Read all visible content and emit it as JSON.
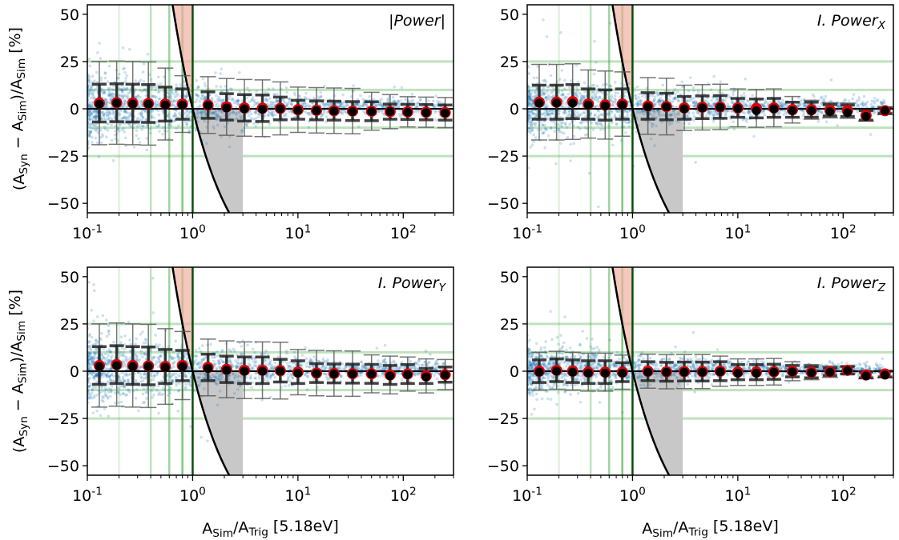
{
  "figure": {
    "xlabel": "A_Sim/A_Trig [5.18eV]",
    "ylabel": "(A_Syn − A_Sim)/A_Sim [%]"
  },
  "chart_data": [
    {
      "type": "scatter",
      "panel_label": "|Power|",
      "xscale": "log",
      "xlim": [
        0.1,
        300
      ],
      "ylim": [
        -55,
        55
      ],
      "yticks": [
        -50,
        -25,
        0,
        25,
        50
      ],
      "xticks": [
        0.1,
        1,
        10,
        100
      ],
      "xtick_labels": [
        "10^-1",
        "10^0",
        "10^1",
        "10^2"
      ],
      "hlines_green": [
        25,
        10,
        -10,
        -25
      ],
      "vlines_green": [
        0.2,
        0.4,
        0.6,
        0.8
      ],
      "vline_dark": 1,
      "scatter_spread": 9,
      "x": [
        0.13,
        0.19,
        0.27,
        0.38,
        0.55,
        0.8,
        1.4,
        2.1,
        3.1,
        4.6,
        6.8,
        10,
        15,
        22,
        33,
        50,
        75,
        110,
        165,
        250
      ],
      "mean": [
        3,
        3.2,
        3,
        2.8,
        2.5,
        2.5,
        2,
        1,
        0.5,
        0.3,
        0.2,
        -0.5,
        -0.8,
        -1,
        -1.2,
        -1.3,
        -1.5,
        -1.6,
        -1.8,
        -2
      ],
      "median": [
        2.5,
        3,
        2.5,
        2.5,
        2,
        2,
        1.8,
        0.5,
        0,
        -0.2,
        0,
        -0.8,
        -1,
        -1.2,
        -1.5,
        -1.5,
        -1.5,
        -1.8,
        -2,
        -2.2
      ],
      "std": [
        10,
        10,
        10,
        10,
        9,
        8,
        7,
        7,
        7,
        7,
        6,
        5,
        5,
        5,
        5,
        5,
        4,
        4,
        4,
        4
      ],
      "p95": [
        22,
        22,
        22,
        22,
        19,
        15,
        15,
        15,
        15,
        15,
        14,
        12,
        12,
        12,
        12,
        10,
        9,
        8,
        8,
        8
      ]
    },
    {
      "type": "scatter",
      "panel_label": "I. Power_X",
      "xscale": "log",
      "xlim": [
        0.1,
        300
      ],
      "ylim": [
        -55,
        55
      ],
      "yticks": [
        -50,
        -25,
        0,
        25,
        50
      ],
      "xticks": [
        0.1,
        1,
        10,
        100
      ],
      "xtick_labels": [
        "10^-1",
        "10^0",
        "10^1",
        "10^2"
      ],
      "hlines_green": [
        25,
        10,
        -10,
        -25
      ],
      "vlines_green": [
        0.2,
        0.4,
        0.6,
        0.8
      ],
      "vline_dark": 1,
      "scatter_spread": 8,
      "x": [
        0.13,
        0.19,
        0.27,
        0.38,
        0.55,
        0.8,
        1.4,
        2.1,
        3.1,
        4.6,
        6.8,
        10,
        15,
        22,
        33,
        50,
        75,
        110,
        165,
        250
      ],
      "mean": [
        3.5,
        3.5,
        3.8,
        2.5,
        2,
        2.5,
        1.5,
        1.2,
        0.5,
        0.8,
        1,
        0.5,
        0.2,
        0.5,
        -0.5,
        -0.5,
        -0.8,
        -1,
        -3.5,
        -1
      ],
      "median": [
        3,
        3,
        3,
        2,
        1.5,
        2,
        1,
        1,
        0,
        0.5,
        0.8,
        0.2,
        -1,
        0,
        -1,
        -1,
        -1.5,
        -2,
        -4,
        -1
      ],
      "std": [
        9,
        9,
        9,
        8,
        8,
        8,
        7,
        7,
        6,
        6,
        6,
        5,
        5,
        5,
        4,
        4,
        3,
        3,
        2.5,
        1.5
      ],
      "p95": [
        20,
        20,
        20,
        18,
        18,
        17,
        15,
        15,
        12,
        12,
        12,
        10,
        10,
        10,
        7,
        5,
        4,
        4,
        3,
        2
      ]
    },
    {
      "type": "scatter",
      "panel_label": "I. Power_Y",
      "xscale": "log",
      "xlim": [
        0.1,
        300
      ],
      "ylim": [
        -55,
        55
      ],
      "yticks": [
        -50,
        -25,
        0,
        25,
        50
      ],
      "xticks": [
        0.1,
        1,
        10,
        100
      ],
      "xtick_labels": [
        "10^-1",
        "10^0",
        "10^1",
        "10^2"
      ],
      "hlines_green": [
        25,
        10,
        -10,
        -25
      ],
      "vlines_green": [
        0.2,
        0.4,
        0.6,
        0.8
      ],
      "vline_dark": 1,
      "scatter_spread": 9,
      "x": [
        0.13,
        0.19,
        0.27,
        0.38,
        0.55,
        0.8,
        1.4,
        2.1,
        3.1,
        4.6,
        6.8,
        10,
        15,
        22,
        33,
        50,
        75,
        110,
        165,
        250
      ],
      "mean": [
        3,
        3.5,
        3,
        2.8,
        2.5,
        3,
        2,
        1,
        0.5,
        0.5,
        0.3,
        -0.5,
        -1,
        -1.2,
        -1.3,
        -1.4,
        -2,
        -1.5,
        -2.5,
        -1.8
      ],
      "median": [
        2.5,
        3,
        2.5,
        2.5,
        2,
        2.5,
        1.5,
        0.5,
        0,
        0,
        0,
        -1,
        -1.2,
        -1.5,
        -1.5,
        -1.5,
        -2.5,
        -1.8,
        -3,
        -2
      ],
      "std": [
        10,
        10,
        10,
        10,
        9,
        8,
        7,
        7,
        7,
        7,
        6,
        6,
        5,
        5,
        5,
        5,
        5,
        5,
        4,
        4
      ],
      "p95": [
        22,
        22,
        22,
        22,
        20,
        18,
        15,
        15,
        15,
        15,
        15,
        12,
        12,
        12,
        12,
        10,
        10,
        9,
        9,
        8
      ]
    },
    {
      "type": "scatter",
      "panel_label": "I. Power_Z",
      "xscale": "log",
      "xlim": [
        0.1,
        300
      ],
      "ylim": [
        -55,
        55
      ],
      "yticks": [
        -50,
        -25,
        0,
        25,
        50
      ],
      "xticks": [
        0.1,
        1,
        10,
        100
      ],
      "xtick_labels": [
        "10^-1",
        "10^0",
        "10^1",
        "10^2"
      ],
      "hlines_green": [
        25,
        10,
        -10,
        -25
      ],
      "vlines_green": [
        0.2,
        0.4,
        0.6,
        0.8
      ],
      "vline_dark": 1,
      "scatter_spread": 6,
      "x": [
        0.13,
        0.19,
        0.27,
        0.38,
        0.55,
        0.8,
        1.4,
        2.1,
        3.1,
        4.6,
        6.8,
        10,
        15,
        22,
        33,
        50,
        75,
        110,
        165,
        250
      ],
      "mean": [
        0,
        0.5,
        0,
        -0.5,
        -0.5,
        -0.5,
        0,
        -0.3,
        -0.2,
        -0.2,
        0,
        -0.5,
        -0.5,
        -0.3,
        0,
        -0.5,
        -0.3,
        0.5,
        -2,
        -1.5
      ],
      "median": [
        -0.5,
        0,
        -0.5,
        -1,
        -1,
        -1,
        -0.5,
        -0.5,
        -0.5,
        -0.5,
        -0.3,
        -1,
        -1,
        -0.5,
        -0.3,
        -0.8,
        -0.5,
        0.3,
        -2.5,
        -2
      ],
      "std": [
        6,
        6,
        6,
        6,
        6,
        5,
        5,
        5,
        5,
        5,
        5,
        4,
        4,
        4,
        3,
        3,
        2,
        2,
        1.5,
        1.5
      ],
      "p95": [
        10,
        10,
        10,
        10,
        10,
        9,
        9,
        9,
        9,
        9,
        8,
        7,
        7,
        7,
        5,
        4,
        3,
        2,
        2,
        2
      ]
    }
  ]
}
